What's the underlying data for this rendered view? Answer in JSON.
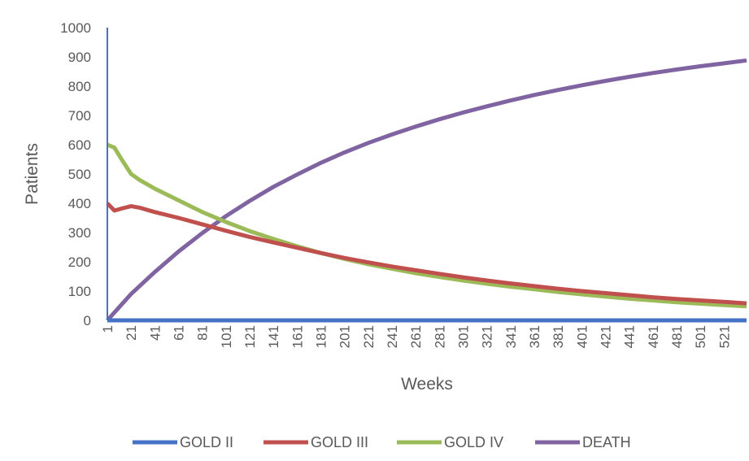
{
  "chart_data": {
    "type": "line",
    "xlabel": "Weeks",
    "ylabel": "Patients",
    "ylim": [
      0,
      1000
    ],
    "xlim": [
      1,
      540
    ],
    "y_ticks": [
      "0",
      "100",
      "200",
      "300",
      "400",
      "500",
      "600",
      "700",
      "800",
      "900",
      "1000"
    ],
    "x_ticks": [
      "1",
      "21",
      "41",
      "61",
      "81",
      "101",
      "121",
      "141",
      "161",
      "181",
      "201",
      "221",
      "241",
      "261",
      "281",
      "301",
      "321",
      "341",
      "361",
      "381",
      "401",
      "421",
      "441",
      "461",
      "481",
      "501",
      "521"
    ],
    "grid": false,
    "legend_position": "bottom",
    "series": [
      {
        "name": "GOLD II",
        "color": "#4472C4",
        "x": [
          1,
          540
        ],
        "y": [
          0,
          0
        ]
      },
      {
        "name": "GOLD III",
        "color": "#C0504D",
        "x": [
          1,
          7,
          13,
          21,
          28,
          41,
          61,
          81,
          101,
          121,
          141,
          161,
          181,
          201,
          221,
          241,
          261,
          281,
          301,
          321,
          341,
          361,
          381,
          401,
          421,
          441,
          461,
          481,
          501,
          521,
          540
        ],
        "y": [
          400,
          375,
          382,
          390,
          385,
          370,
          350,
          328,
          306,
          285,
          266,
          248,
          230,
          213,
          198,
          184,
          171,
          159,
          147,
          136,
          126,
          117,
          108,
          100,
          93,
          86,
          79,
          73,
          68,
          63,
          58
        ]
      },
      {
        "name": "GOLD IV",
        "color": "#9BBB59",
        "x": [
          1,
          7,
          13,
          21,
          28,
          41,
          61,
          81,
          101,
          121,
          141,
          161,
          181,
          201,
          221,
          241,
          261,
          281,
          301,
          321,
          341,
          361,
          381,
          401,
          421,
          441,
          461,
          481,
          501,
          521,
          540
        ],
        "y": [
          600,
          590,
          550,
          500,
          480,
          450,
          410,
          370,
          336,
          305,
          278,
          253,
          230,
          210,
          192,
          176,
          161,
          148,
          136,
          125,
          115,
          106,
          97,
          89,
          81,
          74,
          68,
          62,
          57,
          52,
          48
        ]
      },
      {
        "name": "DEATH",
        "color": "#8064A2",
        "x": [
          1,
          21,
          41,
          61,
          81,
          101,
          121,
          141,
          161,
          181,
          201,
          221,
          241,
          261,
          281,
          301,
          321,
          341,
          361,
          381,
          401,
          421,
          441,
          461,
          481,
          501,
          521,
          540
        ],
        "y": [
          0,
          90,
          165,
          235,
          298,
          356,
          408,
          456,
          498,
          538,
          574,
          606,
          635,
          662,
          687,
          710,
          731,
          751,
          770,
          787,
          803,
          818,
          832,
          845,
          857,
          868,
          878,
          888
        ]
      }
    ]
  }
}
